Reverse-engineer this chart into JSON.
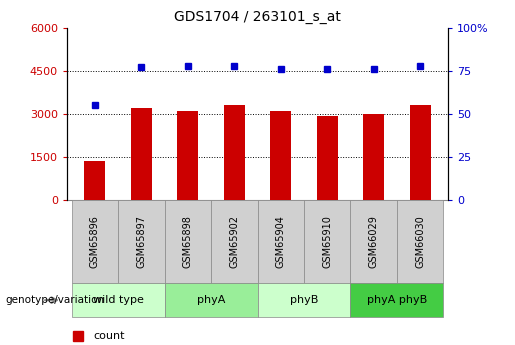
{
  "title": "GDS1704 / 263101_s_at",
  "samples": [
    "GSM65896",
    "GSM65897",
    "GSM65898",
    "GSM65902",
    "GSM65904",
    "GSM65910",
    "GSM66029",
    "GSM66030"
  ],
  "counts": [
    1350,
    3200,
    3100,
    3300,
    3100,
    2920,
    3000,
    3300
  ],
  "percentile_ranks": [
    55,
    77,
    78,
    78,
    76,
    76,
    76,
    78
  ],
  "groups": [
    {
      "label": "wild type",
      "start": 0,
      "end": 2,
      "color": "#ccffcc"
    },
    {
      "label": "phyA",
      "start": 2,
      "end": 4,
      "color": "#99ee99"
    },
    {
      "label": "phyB",
      "start": 4,
      "end": 6,
      "color": "#ccffcc"
    },
    {
      "label": "phyA phyB",
      "start": 6,
      "end": 8,
      "color": "#44cc44"
    }
  ],
  "bar_color": "#cc0000",
  "dot_color": "#0000cc",
  "left_ylim": [
    0,
    6000
  ],
  "right_ylim": [
    0,
    100
  ],
  "left_yticks": [
    0,
    1500,
    3000,
    4500,
    6000
  ],
  "right_yticks": [
    0,
    25,
    50,
    75,
    100
  ],
  "grid_values": [
    1500,
    3000,
    4500
  ],
  "tick_label_color_left": "#cc0000",
  "tick_label_color_right": "#0000cc",
  "bar_width": 0.45,
  "figsize": [
    5.15,
    3.45
  ],
  "dpi": 100
}
